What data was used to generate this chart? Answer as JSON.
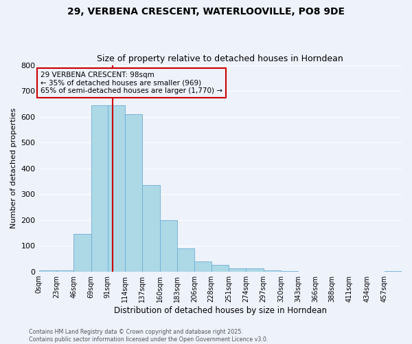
{
  "title1": "29, VERBENA CRESCENT, WATERLOOVILLE, PO8 9DE",
  "title2": "Size of property relative to detached houses in Horndean",
  "xlabel": "Distribution of detached houses by size in Horndean",
  "ylabel": "Number of detached properties",
  "bar_labels": [
    "0sqm",
    "23sqm",
    "46sqm",
    "69sqm",
    "91sqm",
    "114sqm",
    "137sqm",
    "160sqm",
    "183sqm",
    "206sqm",
    "228sqm",
    "251sqm",
    "274sqm",
    "297sqm",
    "320sqm",
    "343sqm",
    "366sqm",
    "388sqm",
    "411sqm",
    "434sqm",
    "457sqm"
  ],
  "bar_values": [
    5,
    5,
    145,
    645,
    645,
    610,
    335,
    200,
    90,
    40,
    25,
    12,
    12,
    5,
    2,
    0,
    0,
    0,
    0,
    0,
    2
  ],
  "bin_edges": [
    0,
    23,
    46,
    69,
    91,
    114,
    137,
    160,
    183,
    206,
    228,
    251,
    274,
    297,
    320,
    343,
    366,
    388,
    411,
    434,
    457,
    480
  ],
  "bar_color": "#add8e6",
  "bar_edgecolor": "#6baed6",
  "vline_x": 98,
  "vline_color": "#cc0000",
  "annotation_text": "29 VERBENA CRESCENT: 98sqm\n← 35% of detached houses are smaller (969)\n65% of semi-detached houses are larger (1,770) →",
  "annotation_box_edgecolor": "#cc0000",
  "background_color": "#eef2fb",
  "grid_color": "#ffffff",
  "ylim": [
    0,
    800
  ],
  "yticks": [
    0,
    100,
    200,
    300,
    400,
    500,
    600,
    700,
    800
  ],
  "xlim": [
    0,
    480
  ],
  "footer1": "Contains HM Land Registry data © Crown copyright and database right 2025.",
  "footer2": "Contains public sector information licensed under the Open Government Licence v3.0."
}
